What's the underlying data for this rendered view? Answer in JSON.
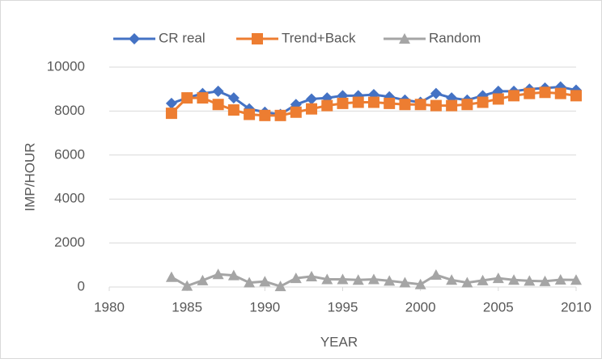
{
  "chart_data": {
    "type": "line",
    "x_label": "YEAR",
    "y_label": "IMP/HOUR",
    "x": [
      1984,
      1985,
      1986,
      1987,
      1988,
      1989,
      1990,
      1991,
      1992,
      1993,
      1994,
      1995,
      1996,
      1997,
      1998,
      1999,
      2000,
      2001,
      2002,
      2003,
      2004,
      2005,
      2006,
      2007,
      2008,
      2009,
      2010
    ],
    "series": [
      {
        "name": "CR real",
        "color": "#4472c4",
        "marker": "diamond",
        "values": [
          8350,
          8600,
          8800,
          8900,
          8600,
          8100,
          7950,
          7850,
          8300,
          8550,
          8600,
          8700,
          8700,
          8750,
          8650,
          8500,
          8400,
          8800,
          8600,
          8500,
          8700,
          8900,
          8900,
          9000,
          9050,
          9100,
          8950
        ]
      },
      {
        "name": "Trend+Back",
        "color": "#ed7d31",
        "marker": "square",
        "values": [
          7900,
          8600,
          8600,
          8300,
          8050,
          7850,
          7800,
          7800,
          7950,
          8100,
          8250,
          8350,
          8400,
          8400,
          8350,
          8300,
          8300,
          8250,
          8250,
          8300,
          8400,
          8550,
          8700,
          8800,
          8850,
          8800,
          8700
        ]
      },
      {
        "name": "Random",
        "color": "#a5a5a5",
        "marker": "triangle",
        "values": [
          450,
          50,
          300,
          580,
          530,
          200,
          250,
          30,
          400,
          480,
          350,
          350,
          320,
          350,
          280,
          200,
          120,
          550,
          320,
          200,
          300,
          400,
          320,
          280,
          260,
          330,
          320
        ]
      }
    ],
    "xlim": [
      1980,
      2010
    ],
    "xticks": [
      1980,
      1985,
      1990,
      1995,
      2000,
      2005,
      2010
    ],
    "ylim": [
      0,
      10000
    ],
    "yticks": [
      0,
      2000,
      4000,
      6000,
      8000,
      10000
    ],
    "grid": true,
    "legend": "top"
  }
}
